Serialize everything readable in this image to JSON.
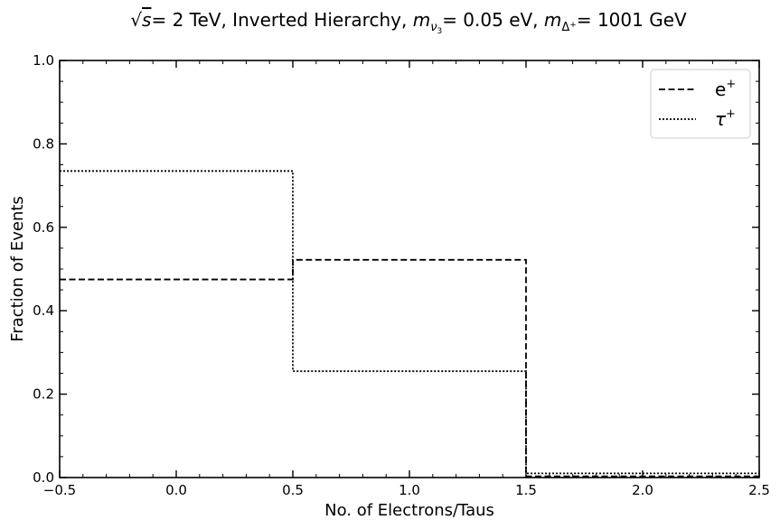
{
  "chart_data": {
    "type": "step",
    "title_parts": {
      "sqrt_s": "s",
      "energy": "= 2 TeV, Inverted Hierarchy, ",
      "m": "m",
      "nu_sub": "ν",
      "nu_subsub": "3",
      "mass_nu": "= 0.05 eV, ",
      "delta_sub": "Δ",
      "delta_sup": "+",
      "mass_delta": "= 1001 GeV"
    },
    "xlabel": "No. of Electrons/Taus",
    "ylabel": "Fraction of Events",
    "xlim": [
      -0.5,
      2.5
    ],
    "ylim": [
      0.0,
      1.0
    ],
    "xticks": [
      -0.5,
      0.0,
      0.5,
      1.0,
      1.5,
      2.0,
      2.5
    ],
    "xtick_labels": [
      "−0.5",
      "0.0",
      "0.5",
      "1.0",
      "1.5",
      "2.0",
      "2.5"
    ],
    "yticks": [
      0.0,
      0.2,
      0.4,
      0.6,
      0.8,
      1.0
    ],
    "ytick_labels": [
      "0.0",
      "0.2",
      "0.4",
      "0.6",
      "0.8",
      "1.0"
    ],
    "bin_edges": [
      -0.5,
      0.5,
      1.5,
      2.5
    ],
    "series": [
      {
        "name": "e",
        "name_sup": "+",
        "style": "dashed",
        "color": "#000000",
        "values": [
          0.475,
          0.522,
          0.003
        ]
      },
      {
        "name": "τ",
        "name_sup": "+",
        "style": "dotted",
        "color": "#000000",
        "values": [
          0.735,
          0.255,
          0.01
        ]
      }
    ],
    "legend_position": "top-right",
    "grid": false
  }
}
